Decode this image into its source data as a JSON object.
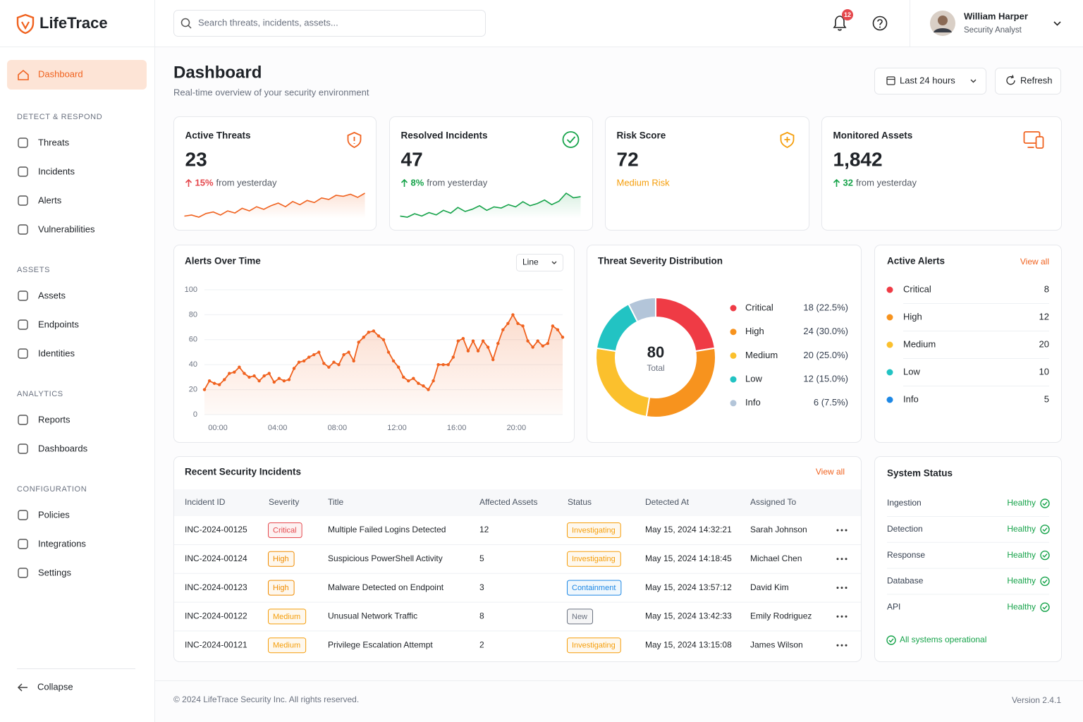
{
  "brand": "LifeTrace",
  "search_placeholder": "Search threats, incidents, assets...",
  "notification_count": 12,
  "user": {
    "name": "William Harper",
    "role": "Security Analyst"
  },
  "nav": {
    "active": "Dashboard",
    "sections": [
      {
        "title": "DETECT & RESPOND",
        "items": [
          "Threats",
          "Incidents",
          "Alerts",
          "Vulnerabilities"
        ]
      },
      {
        "title": "ASSETS",
        "items": [
          "Assets",
          "Endpoints",
          "Identities"
        ]
      },
      {
        "title": "ANALYTICS",
        "items": [
          "Reports",
          "Dashboards"
        ]
      },
      {
        "title": "CONFIGURATION",
        "items": [
          "Policies",
          "Integrations",
          "Settings"
        ]
      }
    ],
    "collapse": "Collapse"
  },
  "header": {
    "title": "Dashboard",
    "subtitle": "Real-time overview of your security environment",
    "time_range": "Last 24 hours",
    "refresh": "Refresh"
  },
  "kpis": [
    {
      "label": "Active Threats",
      "value": 23,
      "change": "15%",
      "change_color": "#e5484d",
      "note": "from yesterday",
      "note_color": "#555b65",
      "trend_color": "#f0621f",
      "trend": [
        20,
        22,
        18,
        25,
        28,
        22,
        30,
        26,
        35,
        30,
        38,
        33,
        40,
        45,
        38,
        48,
        42,
        50,
        46,
        55,
        52,
        60,
        58,
        62,
        56,
        64
      ]
    },
    {
      "label": "Resolved Incidents",
      "value": 47,
      "change": "8%",
      "change_color": "#16a34a",
      "note": "from yesterday",
      "note_color": "#555b65",
      "trend_color": "#16a34a",
      "trend": [
        30,
        28,
        34,
        30,
        36,
        32,
        40,
        35,
        45,
        38,
        42,
        48,
        40,
        46,
        44,
        50,
        46,
        55,
        48,
        52,
        58,
        50,
        56,
        70,
        62,
        64
      ]
    },
    {
      "label": "Risk Score",
      "value": 72,
      "note": "Medium Risk",
      "note_color": "#f59e0b"
    },
    {
      "label": "Monitored Assets",
      "value": "1,842",
      "change": "32",
      "change_color": "#16a34a",
      "note": "from yesterday",
      "note_color": "#555b65"
    }
  ],
  "chart_data": [
    {
      "type": "line",
      "title": "Alerts Over Time",
      "view_select": "Line",
      "color": "#f0621f",
      "grid": true,
      "x": [
        0,
        20,
        40,
        60,
        80,
        100,
        120,
        140,
        160,
        180,
        200,
        220,
        240,
        260,
        280,
        300,
        320,
        340,
        360,
        380,
        400,
        420,
        440,
        460,
        480,
        500,
        520,
        540,
        560,
        580,
        600,
        620,
        640,
        660,
        680,
        700,
        720,
        740,
        760,
        780,
        800,
        820,
        840,
        860,
        880,
        900,
        920,
        940,
        960,
        980,
        1000,
        1020,
        1040,
        1060,
        1080,
        1100,
        1120,
        1140,
        1160,
        1180,
        1200,
        1220,
        1240,
        1260,
        1280,
        1300,
        1320,
        1340,
        1360,
        1380,
        1400,
        1420,
        1440
      ],
      "values": [
        20,
        27,
        25,
        24,
        28,
        33,
        34,
        38,
        33,
        30,
        31,
        27,
        31,
        33,
        26,
        29,
        27,
        28,
        37,
        42,
        43,
        46,
        48,
        50,
        41,
        38,
        42,
        40,
        48,
        50,
        43,
        58,
        62,
        66,
        67,
        63,
        60,
        50,
        43,
        38,
        30,
        27,
        29,
        25,
        23,
        20,
        27,
        40,
        40,
        40,
        46,
        59,
        61,
        51,
        59,
        51,
        59,
        54,
        44,
        57,
        68,
        73,
        80,
        73,
        71,
        59,
        54,
        59,
        55,
        57,
        71,
        68,
        62
      ],
      "xlim": [
        0,
        1440
      ],
      "xticks": [
        {
          "value": 0,
          "label": "00:00"
        },
        {
          "value": 240,
          "label": "04:00"
        },
        {
          "value": 480,
          "label": "08:00"
        },
        {
          "value": 720,
          "label": "12:00"
        },
        {
          "value": 960,
          "label": "16:00"
        },
        {
          "value": 1200,
          "label": "20:00"
        }
      ],
      "ylim": [
        0,
        100
      ],
      "yticks": [
        0,
        20,
        40,
        60,
        80,
        100
      ]
    },
    {
      "type": "donut",
      "title": "Threat Severity Distribution",
      "total": 80,
      "total_label": "Total",
      "categories": [
        "Critical",
        "High",
        "Medium",
        "Low",
        "Info"
      ],
      "values": [
        18,
        24,
        20,
        12,
        6
      ],
      "value_labels": [
        "18 (22.5%)",
        "24 (30.0%)",
        "20 (25.0%)",
        "12 (15.0%)",
        "6 (7.5%)"
      ],
      "colors": [
        "#ef3b45",
        "#f7931e",
        "#fbc02d",
        "#22c3c3",
        "#b3c5d9"
      ]
    }
  ],
  "active_alerts": {
    "title": "Active Alerts",
    "view_all": "View all",
    "items": [
      {
        "name": "Critical",
        "count": 8,
        "color": "#ef3b45"
      },
      {
        "name": "High",
        "count": 12,
        "color": "#f7931e"
      },
      {
        "name": "Medium",
        "count": 20,
        "color": "#fbc02d"
      },
      {
        "name": "Low",
        "count": 10,
        "color": "#22c3c3"
      },
      {
        "name": "Info",
        "count": 5,
        "color": "#1e88e5"
      }
    ]
  },
  "incidents": {
    "title": "Recent Security Incidents",
    "view_all": "View all",
    "columns": [
      "Incident ID",
      "Severity",
      "Title",
      "Affected Assets",
      "Status",
      "Detected At",
      "Assigned To"
    ],
    "rows": [
      [
        "INC-2024-00125",
        "Critical",
        "Multiple Failed Logins Detected",
        12,
        "Investigating",
        "May 15, 2024 14:32:21",
        "Sarah Johnson"
      ],
      [
        "INC-2024-00124",
        "High",
        "Suspicious PowerShell Activity",
        5,
        "Investigating",
        "May 15, 2024 14:18:45",
        "Michael Chen"
      ],
      [
        "INC-2024-00123",
        "High",
        "Malware Detected on Endpoint",
        3,
        "Containment",
        "May 15, 2024 13:57:12",
        "David Kim"
      ],
      [
        "INC-2024-00122",
        "Medium",
        "Unusual Network Traffic",
        8,
        "New",
        "May 15, 2024 13:42:33",
        "Emily Rodriguez"
      ],
      [
        "INC-2024-00121",
        "Medium",
        "Privilege Escalation Attempt",
        2,
        "Investigating",
        "May 15, 2024 13:15:08",
        "James Wilson"
      ]
    ],
    "severity_colors": {
      "Critical": "#e5484d",
      "High": "#f08c00",
      "Medium": "#f59e0b"
    },
    "status_colors": {
      "Investigating": "#f59e0b",
      "Containment": "#1e88e5",
      "New": "#6b7280"
    }
  },
  "system_status": {
    "title": "System Status",
    "items": [
      {
        "name": "Ingestion",
        "status": "Healthy"
      },
      {
        "name": "Detection",
        "status": "Healthy"
      },
      {
        "name": "Response",
        "status": "Healthy"
      },
      {
        "name": "Database",
        "status": "Healthy"
      },
      {
        "name": "API",
        "status": "Healthy"
      }
    ],
    "summary": "All systems operational"
  },
  "footer": {
    "copyright": "© 2024 LifeTrace Security Inc. All rights reserved.",
    "version": "Version 2.4.1"
  }
}
